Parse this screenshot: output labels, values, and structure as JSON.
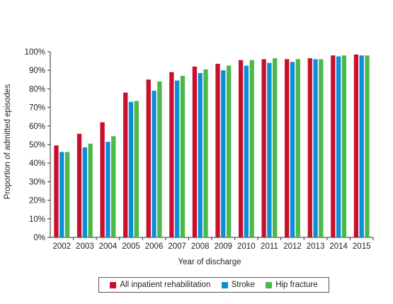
{
  "chart_data": {
    "type": "bar",
    "ylabel": "Proportion of admitted episodes",
    "xlabel": "Year of discharge",
    "ylim": [
      0,
      100
    ],
    "yticks": [
      0,
      10,
      20,
      30,
      40,
      50,
      60,
      70,
      80,
      90,
      100
    ],
    "ytick_suffix": "%",
    "grid": false,
    "legend_position": "bottom",
    "categories": [
      "2002",
      "2003",
      "2004",
      "2005",
      "2006",
      "2007",
      "2008",
      "2009",
      "2010",
      "2011",
      "2012",
      "2013",
      "2014",
      "2015"
    ],
    "series": [
      {
        "name": "All inpatient rehabilitation",
        "color": "#c8102e",
        "values": [
          49.5,
          55.8,
          62,
          78,
          85,
          89,
          92,
          93.5,
          95.5,
          96,
          96,
          96.5,
          98,
          98.5
        ]
      },
      {
        "name": "Stroke",
        "color": "#0a8fd8",
        "values": [
          46,
          48.5,
          51.5,
          73,
          79,
          84.5,
          88.5,
          90,
          92.5,
          94,
          94.5,
          96,
          97.5,
          98
        ]
      },
      {
        "name": "Hip fracture",
        "color": "#4cb848",
        "values": [
          46,
          50.5,
          54.5,
          73.5,
          84,
          87,
          90.5,
          92.5,
          95.5,
          96.5,
          96,
          96,
          98,
          98
        ]
      }
    ]
  }
}
